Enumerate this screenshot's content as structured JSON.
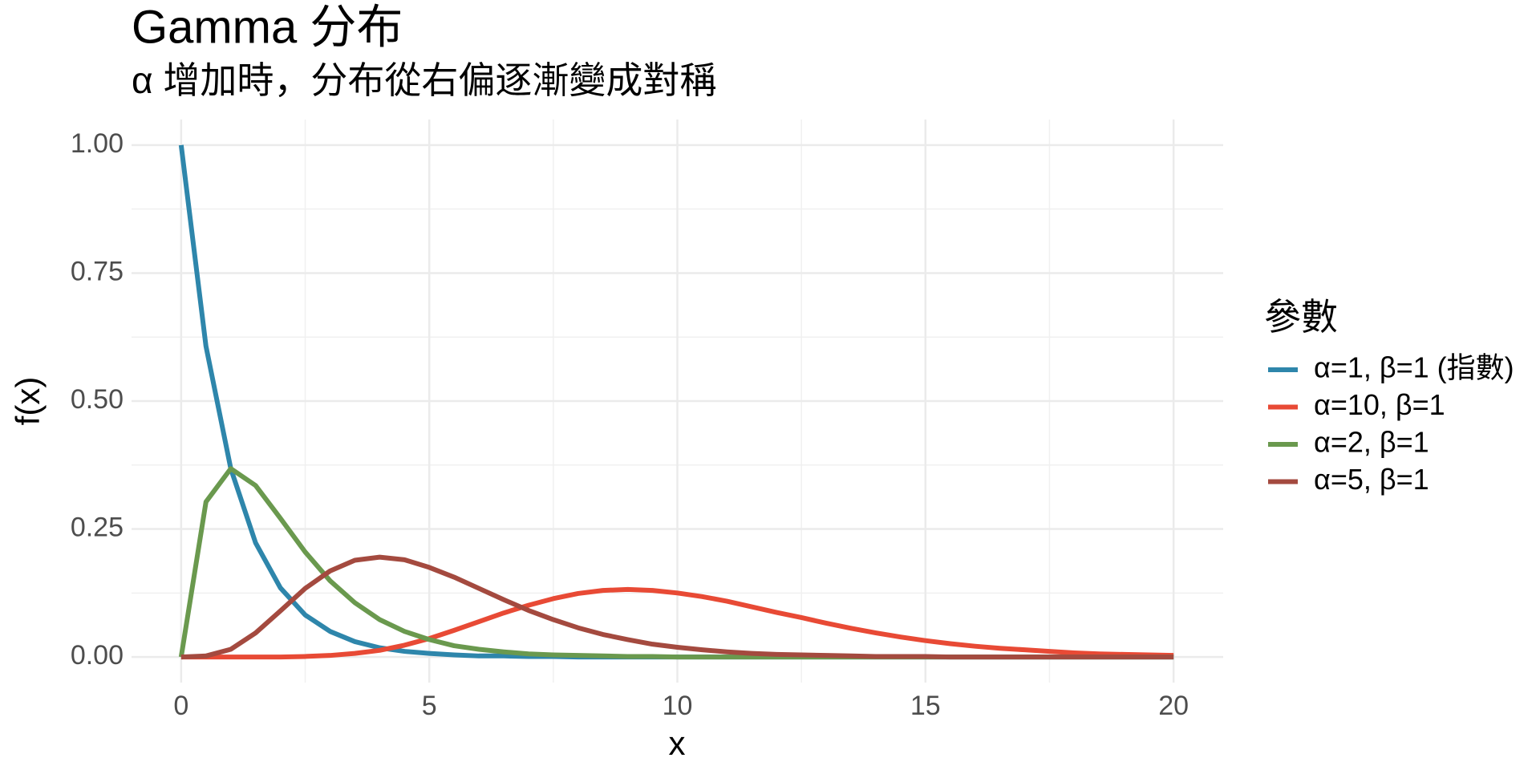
{
  "chart_data": {
    "type": "line",
    "title": "Gamma 分布",
    "subtitle": "α 增加時，分布從右偏逐漸變成對稱",
    "x_label": "x",
    "y_label": "f(x)",
    "legend_title": "參數",
    "legend": "right",
    "grid": true,
    "xlim": [
      -1,
      21
    ],
    "ylim": [
      -0.05,
      1.05
    ],
    "xticks": [
      0,
      5,
      10,
      15,
      20
    ],
    "yticks": [
      {
        "value": 0,
        "label": "0.00"
      },
      {
        "value": 0.25,
        "label": "0.25"
      },
      {
        "value": 0.5,
        "label": "0.50"
      },
      {
        "value": 0.75,
        "label": "0.75"
      },
      {
        "value": 1,
        "label": "1.00"
      }
    ],
    "x": [
      0,
      0.5,
      1,
      1.5,
      2,
      2.5,
      3,
      3.5,
      4,
      4.5,
      5,
      5.5,
      6,
      6.5,
      7,
      7.5,
      8,
      8.5,
      9,
      9.5,
      10,
      10.5,
      11,
      11.5,
      12,
      12.5,
      13,
      13.5,
      14,
      14.5,
      15,
      15.5,
      16,
      16.5,
      17,
      17.5,
      18,
      18.5,
      19,
      19.5,
      20
    ],
    "series": [
      {
        "name": "α=1, β=1 (指數)",
        "color": "#2e86ab",
        "values": [
          1,
          0.607,
          0.368,
          0.223,
          0.135,
          0.082,
          0.05,
          0.03,
          0.018,
          0.011,
          0.007,
          0.004,
          0.002,
          0.002,
          0.001,
          0.001,
          0,
          0,
          0,
          0,
          0,
          0,
          0,
          0,
          0,
          0,
          0,
          0,
          0,
          0,
          0,
          0,
          0,
          0,
          0,
          0,
          0,
          0,
          0,
          0,
          0
        ]
      },
      {
        "name": "α=10, β=1",
        "color": "#e84a35",
        "values": [
          0,
          0,
          0,
          0,
          0,
          0.001,
          0.003,
          0.007,
          0.013,
          0.023,
          0.036,
          0.052,
          0.069,
          0.086,
          0.101,
          0.114,
          0.124,
          0.13,
          0.132,
          0.13,
          0.125,
          0.118,
          0.109,
          0.098,
          0.087,
          0.077,
          0.066,
          0.056,
          0.047,
          0.039,
          0.032,
          0.026,
          0.021,
          0.017,
          0.014,
          0.011,
          0.008,
          0.006,
          0.005,
          0.004,
          0.003
        ]
      },
      {
        "name": "α=2, β=1",
        "color": "#6a994e",
        "values": [
          0,
          0.303,
          0.368,
          0.335,
          0.271,
          0.205,
          0.149,
          0.106,
          0.073,
          0.05,
          0.034,
          0.022,
          0.015,
          0.01,
          0.006,
          0.004,
          0.003,
          0.002,
          0.001,
          0.001,
          0,
          0,
          0,
          0,
          0,
          0,
          0,
          0,
          0,
          0,
          0,
          0,
          0,
          0,
          0,
          0,
          0,
          0,
          0,
          0,
          0
        ]
      },
      {
        "name": "α=5, β=1",
        "color": "#a44a3f",
        "values": [
          0,
          0.002,
          0.015,
          0.047,
          0.09,
          0.134,
          0.168,
          0.189,
          0.195,
          0.19,
          0.175,
          0.156,
          0.134,
          0.112,
          0.091,
          0.073,
          0.057,
          0.044,
          0.034,
          0.025,
          0.019,
          0.014,
          0.01,
          0.007,
          0.005,
          0.004,
          0.003,
          0.002,
          0.001,
          0.001,
          0.001,
          0,
          0,
          0,
          0,
          0,
          0,
          0,
          0,
          0,
          0
        ]
      }
    ]
  }
}
